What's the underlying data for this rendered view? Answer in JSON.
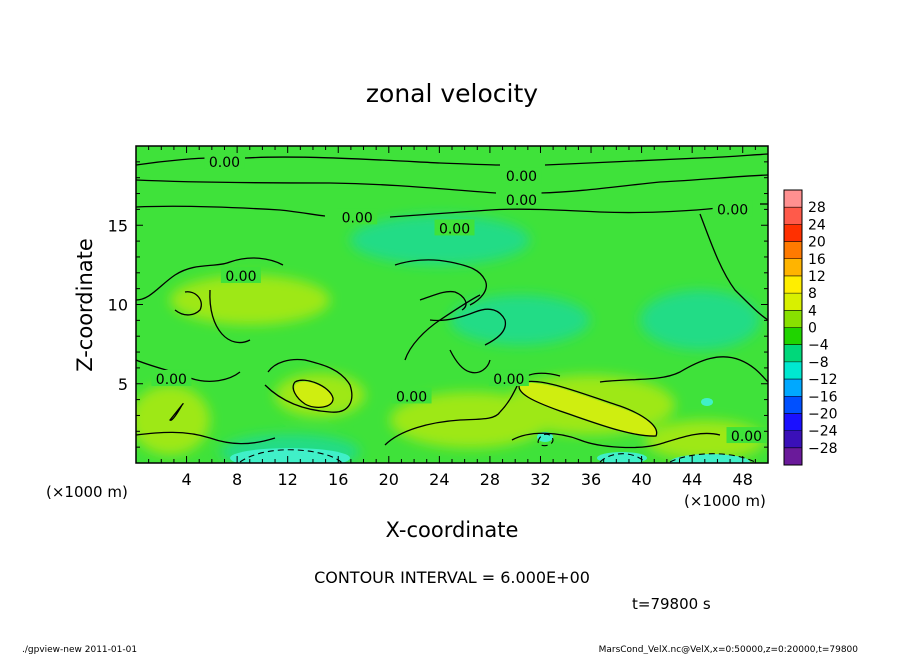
{
  "chart_data": {
    "type": "heatmap",
    "title": "zonal velocity",
    "xlabel": "X-coordinate",
    "ylabel": "Z-coordinate",
    "x_unit": "(×1000 m)",
    "x_unit_right": "(×1000 m)",
    "xlim": [
      0,
      50
    ],
    "ylim": [
      0,
      20
    ],
    "x_ticks": [
      4,
      8,
      12,
      16,
      20,
      24,
      28,
      32,
      36,
      40,
      44,
      48
    ],
    "y_ticks": [
      5,
      10,
      15
    ],
    "contour_interval_label": "CONTOUR INTERVAL = 6.000E+00",
    "time_label": "t=79800 s",
    "contour_labels": [
      {
        "text": "0.00",
        "x": 7,
        "z": 19.0
      },
      {
        "text": "0.00",
        "x": 30.5,
        "z": 18.1
      },
      {
        "text": "0.00",
        "x": 30.5,
        "z": 16.6
      },
      {
        "text": "0.00",
        "x": 47.2,
        "z": 16.0
      },
      {
        "text": "0.00",
        "x": 17.5,
        "z": 15.5
      },
      {
        "text": "0.00",
        "x": 25.2,
        "z": 14.8
      },
      {
        "text": "0.00",
        "x": 8.3,
        "z": 11.8
      },
      {
        "text": "0.00",
        "x": 2.8,
        "z": 5.3
      },
      {
        "text": "0.00",
        "x": 21.8,
        "z": 4.2
      },
      {
        "text": "0.00",
        "x": 29.5,
        "z": 5.3
      },
      {
        "text": "0.00",
        "x": 48.3,
        "z": 1.7
      }
    ],
    "colorbar": {
      "levels": [
        28,
        24,
        20,
        16,
        12,
        8,
        4,
        0,
        -4,
        -8,
        -12,
        -16,
        -20,
        -24,
        -28
      ],
      "colors": [
        "#ff9090",
        "#ff5a4a",
        "#ff3000",
        "#ff7a00",
        "#ffb400",
        "#ffee00",
        "#d8f000",
        "#88e000",
        "#20d400",
        "#00d87a",
        "#00e8d0",
        "#00a8ff",
        "#0050ff",
        "#1a10ff",
        "#3a10b8",
        "#6a1a9a"
      ]
    },
    "field_colors": {
      "background": "#3fe23a",
      "positive_weak": "#9ee818",
      "positive_strong": "#cfee10",
      "negative_weak": "#22dc86",
      "negative_strong": "#40f0c8"
    }
  },
  "footer": {
    "left": "./gpview-new  2011-01-01",
    "right": "MarsCond_VelX.nc@VelX,x=0:50000,z=0:20000,t=79800"
  }
}
